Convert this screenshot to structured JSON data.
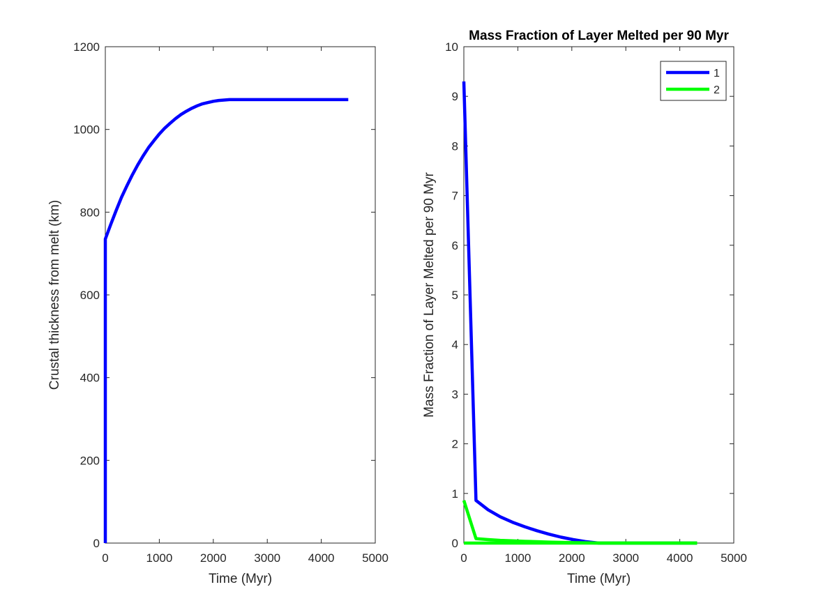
{
  "chart_data": [
    {
      "type": "line",
      "title": "",
      "xlabel": "Time (Myr)",
      "ylabel": "Crustal thickness from melt (km)",
      "xlim": [
        0,
        5000
      ],
      "ylim": [
        0,
        1200
      ],
      "xticks": [
        0,
        1000,
        2000,
        3000,
        4000,
        5000
      ],
      "yticks": [
        0,
        200,
        400,
        600,
        800,
        1000,
        1200
      ],
      "xtick_labels": [
        "0",
        "1000",
        "2000",
        "3000",
        "4000",
        "5000"
      ],
      "ytick_labels": [
        "0",
        "200",
        "400",
        "600",
        "800",
        "1000",
        "1200"
      ],
      "grid": false,
      "legend": null,
      "series": [
        {
          "color": "#0000ff",
          "x": [
            0,
            0,
            100,
            200,
            300,
            400,
            500,
            600,
            700,
            800,
            900,
            1000,
            1100,
            1200,
            1300,
            1400,
            1500,
            1600,
            1700,
            1800,
            1900,
            2000,
            2100,
            2200,
            2300,
            2400,
            2500,
            3000,
            3500,
            4000,
            4500
          ],
          "y": [
            0,
            735,
            770,
            804,
            836,
            864,
            890,
            914,
            936,
            956,
            973,
            989,
            1003,
            1015,
            1026,
            1036,
            1044,
            1051,
            1057,
            1062,
            1065,
            1068,
            1070,
            1071,
            1072,
            1072,
            1072,
            1072,
            1072,
            1072,
            1072
          ]
        }
      ]
    },
    {
      "type": "line",
      "title": "Mass Fraction of Layer Melted per 90 Myr",
      "xlabel": "Time (Myr)",
      "ylabel": "Mass Fraction of Layer Melted per 90 Myr",
      "xlim": [
        0,
        5000
      ],
      "ylim": [
        0,
        10
      ],
      "xticks": [
        0,
        1000,
        2000,
        3000,
        4000,
        5000
      ],
      "yticks": [
        0,
        1,
        2,
        3,
        4,
        5,
        6,
        7,
        8,
        9,
        10
      ],
      "xtick_labels": [
        "0",
        "1000",
        "2000",
        "3000",
        "4000",
        "5000"
      ],
      "ytick_labels": [
        "0",
        "1",
        "2",
        "3",
        "4",
        "5",
        "6",
        "7",
        "8",
        "9",
        "10"
      ],
      "grid": false,
      "legend": "top-right",
      "series": [
        {
          "name": "1",
          "color": "#0000ff",
          "x": [
            0,
            225,
            450,
            675,
            900,
            1125,
            1350,
            1575,
            1800,
            2025,
            2250,
            2500,
            2600,
            3000,
            3500,
            4000,
            4320
          ],
          "y": [
            9.3,
            0.86,
            0.67,
            0.53,
            0.42,
            0.33,
            0.25,
            0.18,
            0.12,
            0.07,
            0.03,
            0.0,
            0.0,
            0.0,
            0.0,
            0.0,
            0.0
          ]
        },
        {
          "name": "2",
          "color": "#00ff00",
          "x": [
            0,
            225,
            450,
            675,
            900,
            1125,
            1350,
            1575,
            1800,
            2025,
            2250,
            2500,
            3000,
            3500,
            4000,
            4320
          ],
          "y": [
            0.86,
            0.09,
            0.07,
            0.055,
            0.045,
            0.035,
            0.028,
            0.02,
            0.014,
            0.009,
            0.005,
            0.0,
            0.0,
            0.0,
            0.0,
            0.0
          ]
        },
        {
          "color": "#00ff00",
          "x": [
            0,
            4320
          ],
          "y": [
            0,
            0
          ]
        }
      ]
    }
  ]
}
